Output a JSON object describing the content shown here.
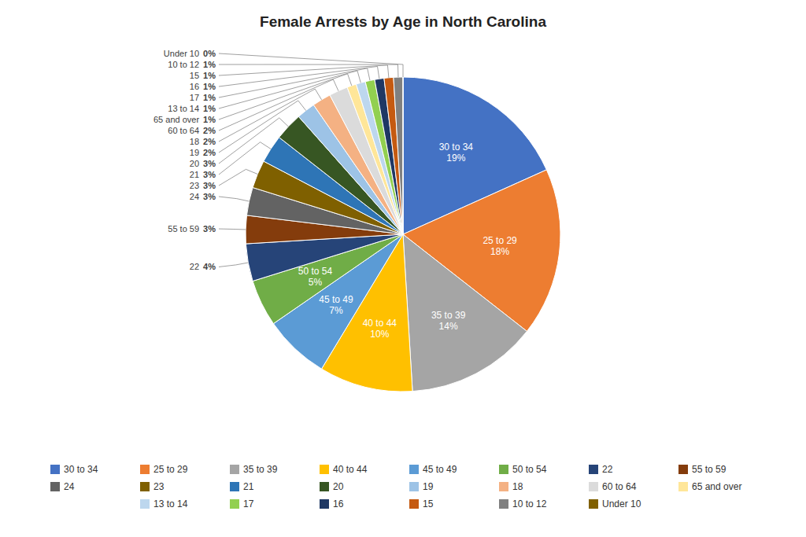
{
  "chart_data": {
    "type": "pie",
    "title": "Female Arrests by Age in North Carolina",
    "categories": [
      "30 to 34",
      "25 to 29",
      "35 to 39",
      "40 to 44",
      "45 to 49",
      "50 to 54",
      "22",
      "55 to 59",
      "24",
      "23",
      "21",
      "20",
      "19",
      "18",
      "60 to 64",
      "65 and over",
      "13 to 14",
      "17",
      "16",
      "15",
      "10 to 12",
      "Under 10"
    ],
    "values": [
      19,
      18,
      14,
      10,
      7,
      5,
      4,
      3,
      3,
      3,
      3,
      3,
      2,
      2,
      2,
      1,
      1,
      1,
      1,
      1,
      1,
      0
    ],
    "value_labels": [
      "19%",
      "18%",
      "14%",
      "10%",
      "7%",
      "5%",
      "4%",
      "3%",
      "3%",
      "3%",
      "3%",
      "3%",
      "2%",
      "2%",
      "2%",
      "1%",
      "1%",
      "1%",
      "1%",
      "1%",
      "1%",
      "0%"
    ],
    "colors": [
      "#4472C4",
      "#ED7D31",
      "#A5A5A5",
      "#FFC000",
      "#5B9BD5",
      "#70AD47",
      "#264478",
      "#843C0C",
      "#636363",
      "#7F6000",
      "#2E75B6",
      "#375623",
      "#9DC3E6",
      "#F4B183",
      "#DBDBDB",
      "#FFE699",
      "#BDD7EE",
      "#92D050",
      "#1F3864",
      "#C55A11",
      "#808080",
      "#806000"
    ],
    "data_labels": true,
    "legend": "bottom"
  }
}
